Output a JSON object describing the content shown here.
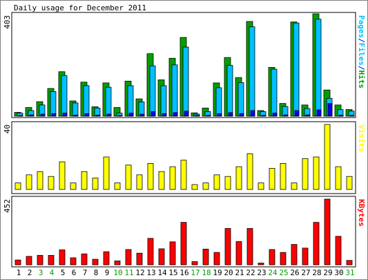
{
  "chart_data": [
    {
      "type": "bar",
      "title": "Daily usage for December 2011",
      "max_label": "403",
      "right_label": {
        "parts": [
          {
            "text": "Pages",
            "color": "#00c0ff"
          },
          {
            "text": "/",
            "color": "#0000ff"
          },
          {
            "text": "Files",
            "color": "#00c0ff"
          },
          {
            "text": "/",
            "color": "#0000ff"
          },
          {
            "text": "Hits",
            "color": "#00a000"
          }
        ]
      },
      "ylim": [
        0,
        403
      ],
      "series": [
        {
          "name": "Hits",
          "color": "#00a000",
          "values": [
            15,
            34,
            57,
            109,
            175,
            60,
            134,
            37,
            131,
            34,
            138,
            68,
            246,
            143,
            228,
            310,
            13,
            32,
            131,
            231,
            152,
            373,
            22,
            192,
            50,
            371,
            44,
            403,
            103,
            44,
            26
          ]
        },
        {
          "name": "Files",
          "color": "#00c0ff",
          "values": [
            12,
            22,
            44,
            97,
            160,
            52,
            120,
            32,
            114,
            12,
            120,
            56,
            198,
            120,
            202,
            272,
            8,
            18,
            112,
            200,
            132,
            352,
            18,
            185,
            38,
            367,
            30,
            382,
            70,
            26,
            20
          ]
        },
        {
          "name": "Pages",
          "color": "#0000ff",
          "values": [
            3,
            5,
            8,
            10,
            12,
            4,
            10,
            4,
            8,
            3,
            12,
            8,
            18,
            10,
            14,
            20,
            2,
            3,
            10,
            14,
            10,
            22,
            3,
            12,
            5,
            22,
            5,
            25,
            50,
            4,
            3
          ]
        }
      ]
    },
    {
      "type": "bar",
      "max_label": "40",
      "right_label": {
        "parts": [
          {
            "text": "Visits",
            "color": "#ffff00"
          }
        ]
      },
      "ylim": [
        0,
        40
      ],
      "series": [
        {
          "name": "Visits",
          "color": "#ffff00",
          "values": [
            4,
            9,
            11,
            8,
            17,
            4,
            11,
            7,
            20,
            4,
            15,
            9,
            16,
            11,
            14,
            18,
            3,
            4,
            9,
            8,
            14,
            22,
            4,
            13,
            16,
            4,
            19,
            20,
            40,
            14,
            8
          ]
        }
      ]
    },
    {
      "type": "bar",
      "max_label": "452",
      "right_label": {
        "parts": [
          {
            "text": "KBytes",
            "color": "#ff0000"
          }
        ]
      },
      "ylim": [
        0,
        452
      ],
      "series": [
        {
          "name": "KBytes",
          "color": "#ff0000",
          "values": [
            33,
            58,
            65,
            65,
            103,
            48,
            75,
            38,
            90,
            27,
            105,
            80,
            182,
            110,
            158,
            292,
            22,
            108,
            85,
            250,
            160,
            250,
            12,
            105,
            85,
            140,
            115,
            292,
            452,
            196,
            30
          ]
        }
      ]
    }
  ],
  "days": [
    {
      "label": "1",
      "color": "#000000"
    },
    {
      "label": "2",
      "color": "#000000"
    },
    {
      "label": "3",
      "color": "#00a000"
    },
    {
      "label": "4",
      "color": "#00a000"
    },
    {
      "label": "5",
      "color": "#000000"
    },
    {
      "label": "6",
      "color": "#000000"
    },
    {
      "label": "7",
      "color": "#000000"
    },
    {
      "label": "8",
      "color": "#000000"
    },
    {
      "label": "9",
      "color": "#000000"
    },
    {
      "label": "10",
      "color": "#00a000"
    },
    {
      "label": "11",
      "color": "#00a000"
    },
    {
      "label": "12",
      "color": "#000000"
    },
    {
      "label": "13",
      "color": "#000000"
    },
    {
      "label": "14",
      "color": "#000000"
    },
    {
      "label": "15",
      "color": "#000000"
    },
    {
      "label": "16",
      "color": "#000000"
    },
    {
      "label": "17",
      "color": "#00a000"
    },
    {
      "label": "18",
      "color": "#00a000"
    },
    {
      "label": "19",
      "color": "#000000"
    },
    {
      "label": "20",
      "color": "#000000"
    },
    {
      "label": "21",
      "color": "#000000"
    },
    {
      "label": "22",
      "color": "#000000"
    },
    {
      "label": "23",
      "color": "#000000"
    },
    {
      "label": "24",
      "color": "#00a000"
    },
    {
      "label": "25",
      "color": "#00a000"
    },
    {
      "label": "26",
      "color": "#000000"
    },
    {
      "label": "27",
      "color": "#000000"
    },
    {
      "label": "28",
      "color": "#000000"
    },
    {
      "label": "29",
      "color": "#000000"
    },
    {
      "label": "30",
      "color": "#000000"
    },
    {
      "label": "31",
      "color": "#00a000"
    }
  ]
}
